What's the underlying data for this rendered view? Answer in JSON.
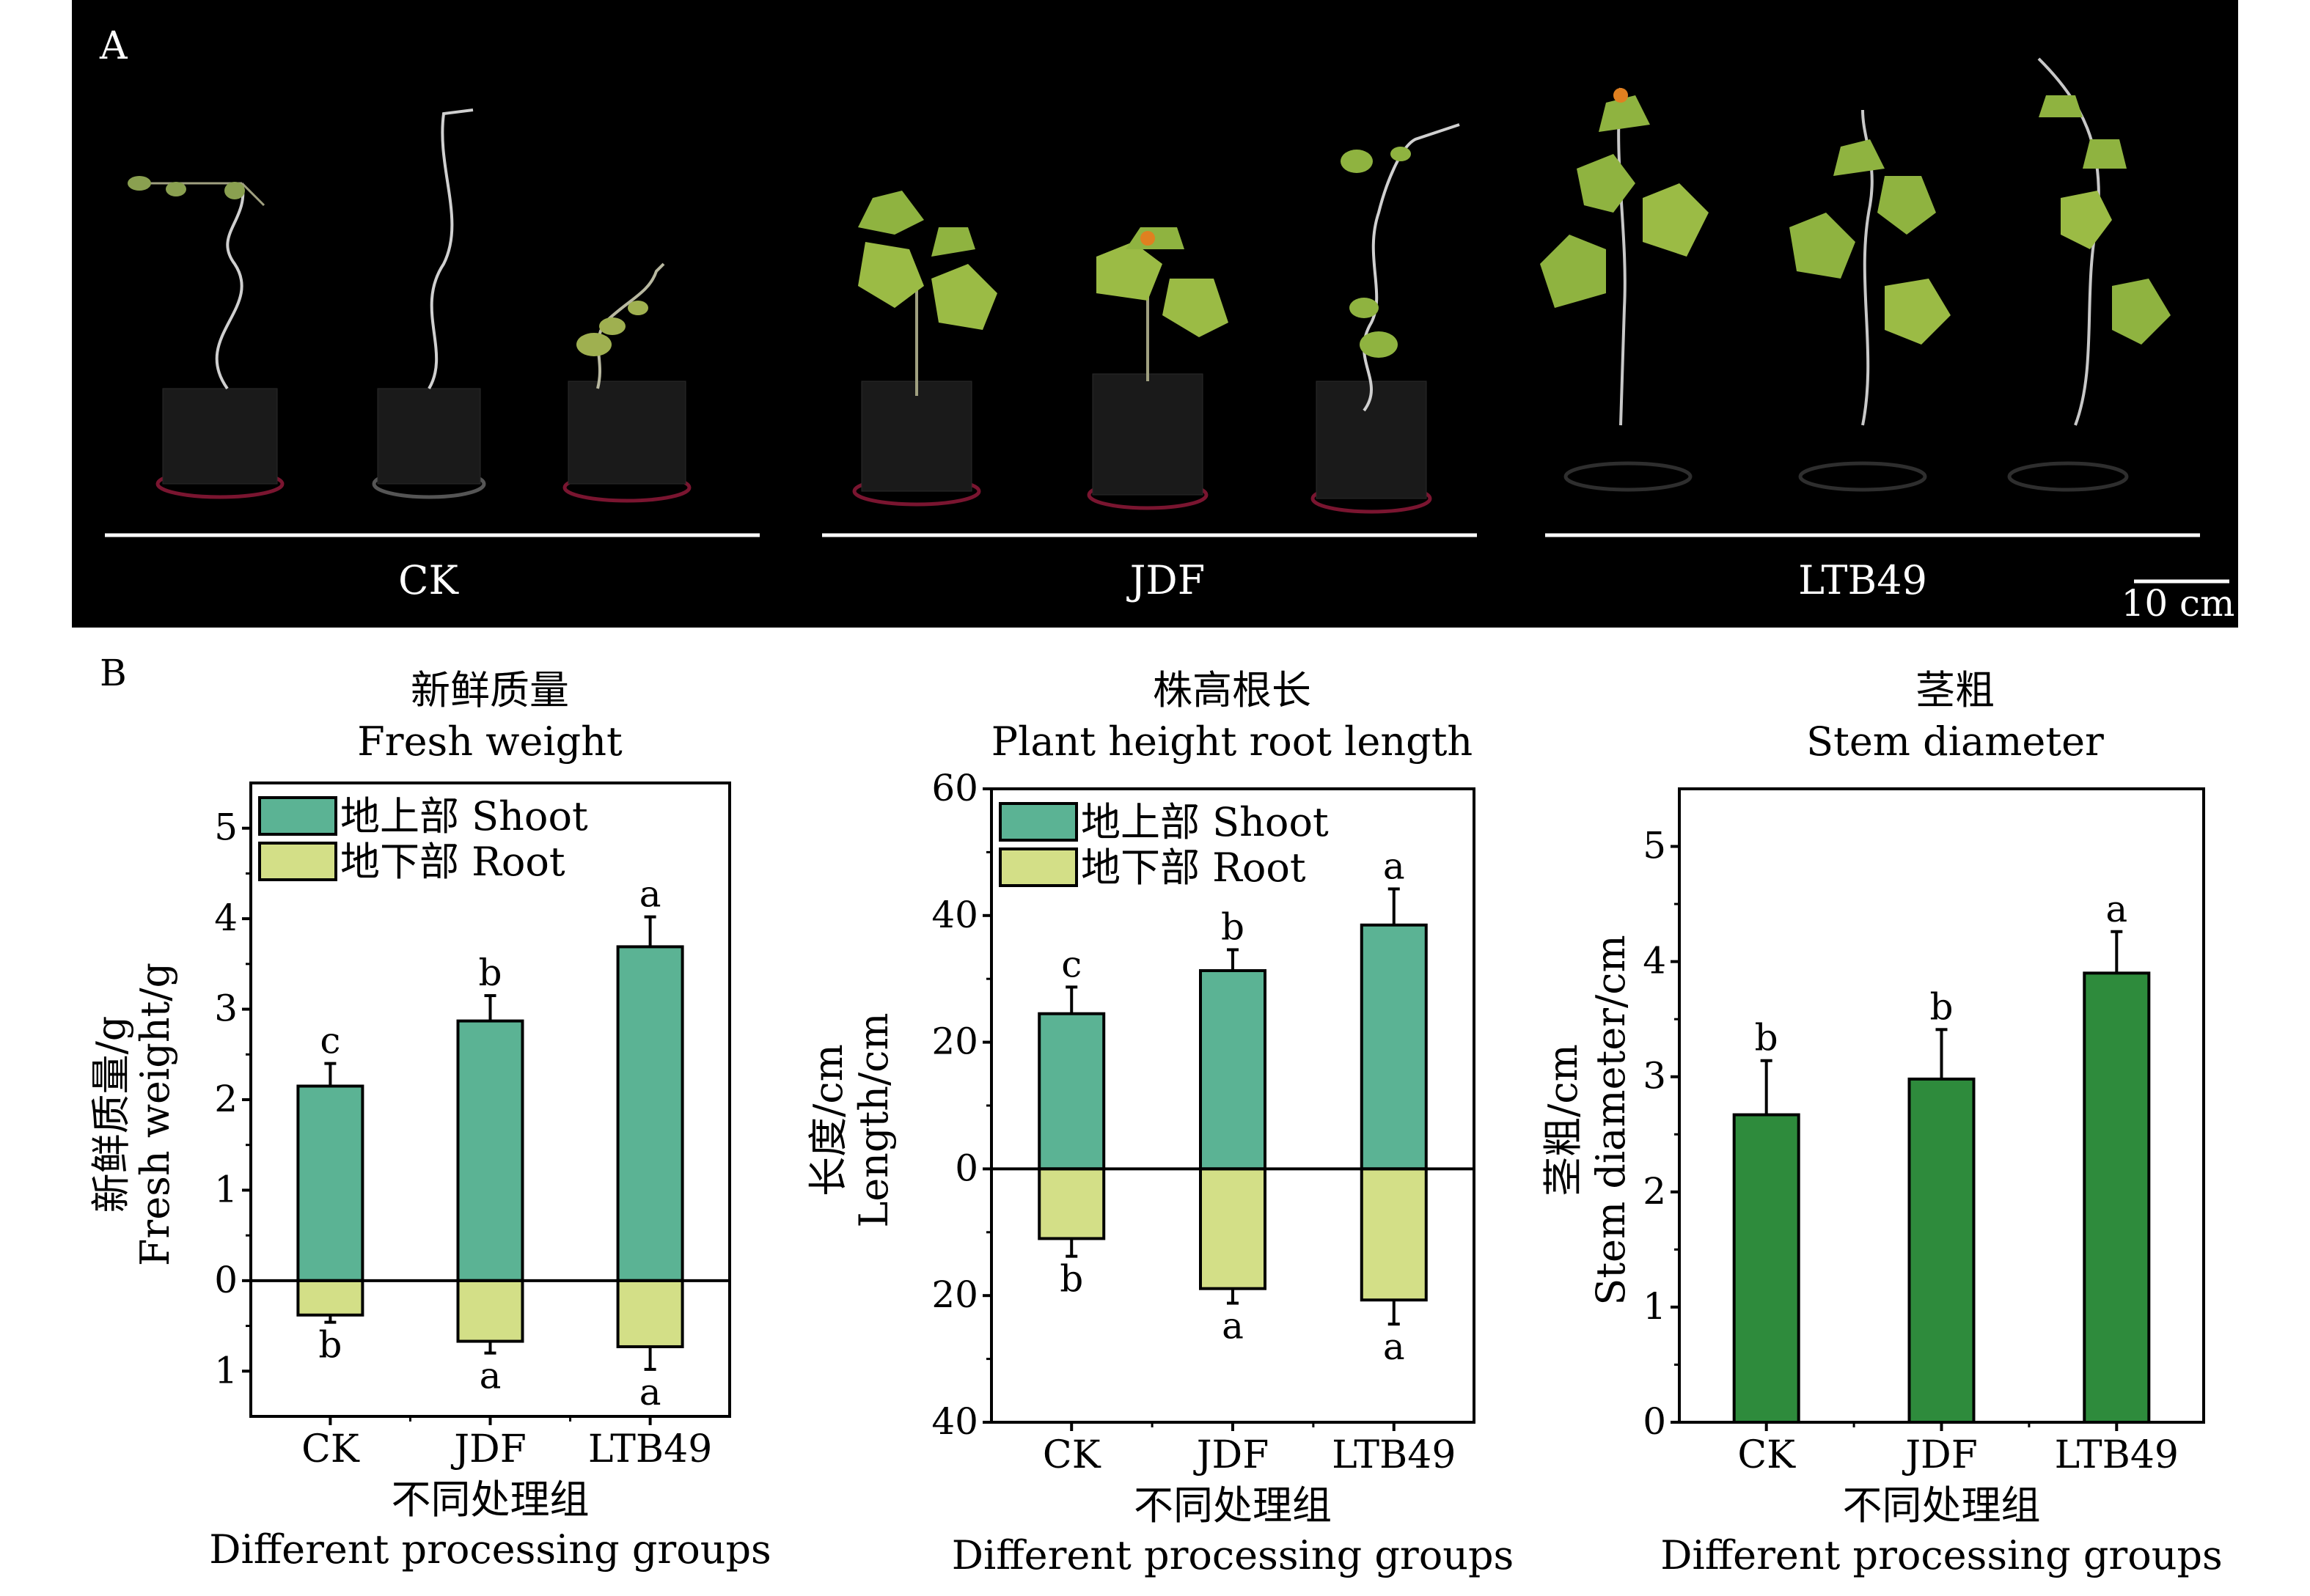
{
  "panel_a": {
    "label": "A",
    "groups": [
      "CK",
      "JDF",
      "LTB49"
    ],
    "scale_bar": "10 cm"
  },
  "panel_b": {
    "label": "B"
  },
  "chart_data": [
    {
      "type": "bar",
      "title": "新鲜质量",
      "subtitle": "Fresh weight",
      "ylabel": "新鲜质量/g",
      "ylabel2": "Fresh weight/g",
      "xlabel": "不同处理组",
      "xlabel2": "Different processing groups",
      "categories": [
        "CK",
        "JDF",
        "LTB49"
      ],
      "ylim": [
        -1.5,
        5.5
      ],
      "yticks": [
        -1,
        0,
        1,
        2,
        3,
        4,
        5
      ],
      "ytick_labels": [
        "1",
        "0",
        "1",
        "2",
        "3",
        "4",
        "5"
      ],
      "legend_position": "top-left",
      "series": [
        {
          "name": "地上部 Shoot",
          "values": [
            2.15,
            2.87,
            3.69
          ],
          "errors": [
            0.25,
            0.28,
            0.33
          ],
          "letters": [
            "c",
            "b",
            "a"
          ],
          "color": "#5bb394"
        },
        {
          "name": "地下部 Root",
          "values": [
            -0.38,
            -0.67,
            -0.73
          ],
          "errors": [
            0.08,
            0.13,
            0.25
          ],
          "letters": [
            "b",
            "a",
            "a"
          ],
          "color": "#d3df87"
        }
      ]
    },
    {
      "type": "bar",
      "title": "株高根长",
      "subtitle": "Plant height root length",
      "ylabel": "长度/cm",
      "ylabel2": "Length/cm",
      "xlabel": "不同处理组",
      "xlabel2": "Different processing groups",
      "categories": [
        "CK",
        "JDF",
        "LTB49"
      ],
      "ylim": [
        -40,
        60
      ],
      "yticks": [
        -40,
        -20,
        0,
        20,
        40,
        60
      ],
      "ytick_labels": [
        "40",
        "20",
        "0",
        "20",
        "40",
        "60"
      ],
      "legend_position": "top-left",
      "series": [
        {
          "name": "地上部 Shoot",
          "values": [
            24.5,
            31.3,
            38.5
          ],
          "errors": [
            4.2,
            3.3,
            5.7
          ],
          "letters": [
            "c",
            "b",
            "a"
          ],
          "color": "#5bb394"
        },
        {
          "name": "地下部 Root",
          "values": [
            -11.0,
            -18.9,
            -20.7
          ],
          "errors": [
            2.8,
            2.3,
            3.8
          ],
          "letters": [
            "b",
            "a",
            "a"
          ],
          "color": "#d3df87"
        }
      ]
    },
    {
      "type": "bar",
      "title": "茎粗",
      "subtitle": "Stem diameter",
      "ylabel": "茎粗/cm",
      "ylabel2": "Stem diameter/cm",
      "xlabel": "不同处理组",
      "xlabel2": "Different processing groups",
      "categories": [
        "CK",
        "JDF",
        "LTB49"
      ],
      "ylim": [
        0,
        5.5
      ],
      "yticks": [
        0,
        1,
        2,
        3,
        4,
        5
      ],
      "ytick_labels": [
        "0",
        "1",
        "2",
        "3",
        "4",
        "5"
      ],
      "series": [
        {
          "values": [
            2.67,
            2.98,
            3.9
          ],
          "errors": [
            0.47,
            0.43,
            0.36
          ],
          "letters": [
            "b",
            "b",
            "a"
          ],
          "color": "#2e8b3c"
        }
      ]
    }
  ]
}
